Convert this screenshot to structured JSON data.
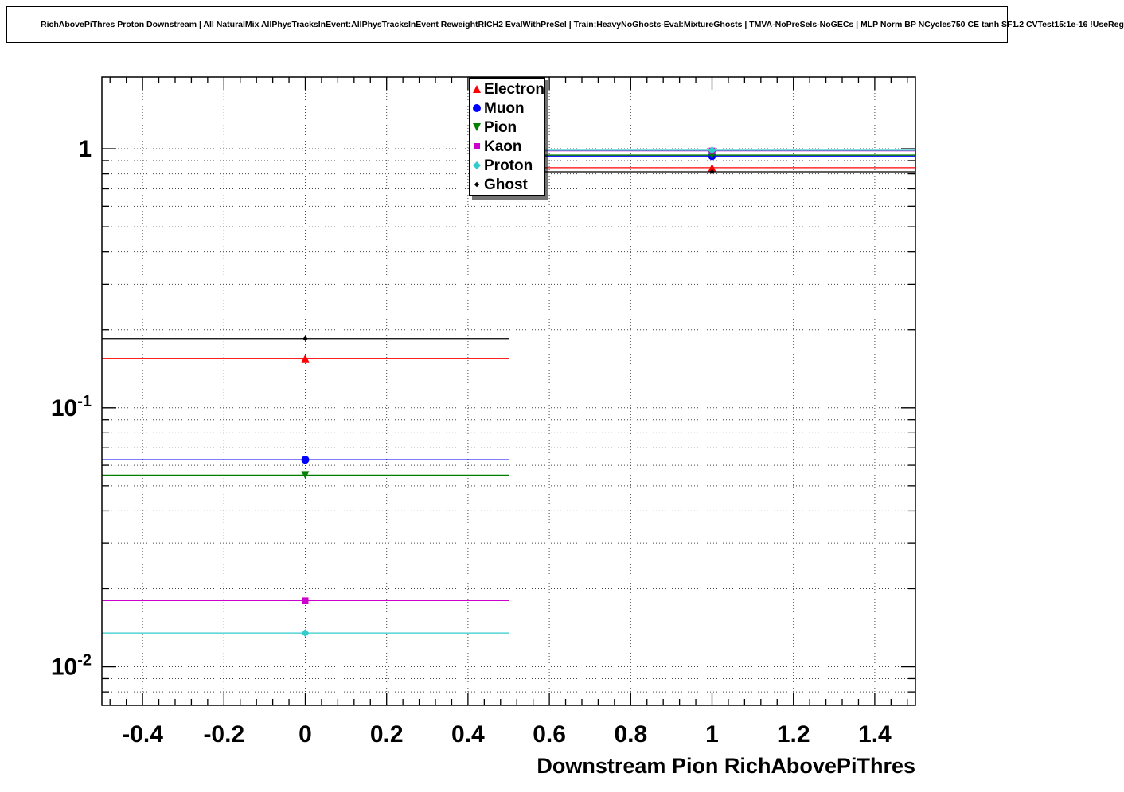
{
  "window": {
    "title": "RichAbovePiThres Proton Downstream | All NaturalMix AllPhysTracksInEvent:AllPhysTracksInEvent ReweightRICH2 EvalWithPreSel | Train:HeavyNoGhosts-Eval:MixtureGhosts | TMVA-NoPreSels-NoGECs | MLP Norm BP NCycles750 CE tanh SF1.2 CVTest15:1e-16 !UseReg"
  },
  "chart_data": {
    "type": "line",
    "title": "",
    "xlabel": "Downstream Pion RichAbovePiThres",
    "ylabel": "",
    "yscale": "log",
    "xlim": [
      -0.5,
      1.5
    ],
    "ylim": [
      0.0071,
      1.89
    ],
    "grid": true,
    "legend_position": "top-center",
    "x_ticks": [
      -0.4,
      -0.2,
      0,
      0.2,
      0.4,
      0.6,
      0.8,
      1,
      1.2,
      1.4
    ],
    "x_tick_labels": [
      "-0.4",
      "-0.2",
      "0",
      "0.2",
      "0.4",
      "0.6",
      "0.8",
      "1",
      "1.2",
      "1.4"
    ],
    "y_ticks": [
      {
        "v": 1,
        "base": "1",
        "exp": ""
      },
      {
        "v": 0.1,
        "base": "10",
        "exp": "-1"
      },
      {
        "v": 0.01,
        "base": "10",
        "exp": "-2"
      }
    ],
    "bins": {
      "centers": [
        0,
        1
      ],
      "halfwidth": 0.5
    },
    "series": [
      {
        "name": "Electron",
        "color": "#ff0000",
        "marker": "triangle-up",
        "values": [
          0.155,
          0.845
        ]
      },
      {
        "name": "Muon",
        "color": "#0000ff",
        "marker": "circle",
        "values": [
          0.063,
          0.937
        ]
      },
      {
        "name": "Pion",
        "color": "#008000",
        "marker": "triangle-down",
        "values": [
          0.055,
          0.945
        ]
      },
      {
        "name": "Kaon",
        "color": "#cc00cc",
        "marker": "square",
        "values": [
          0.018,
          0.982
        ]
      },
      {
        "name": "Proton",
        "color": "#33cccc",
        "marker": "diamond",
        "values": [
          0.0135,
          0.9865
        ]
      },
      {
        "name": "Ghost",
        "color": "#000000",
        "marker": "dot",
        "values": [
          0.185,
          0.815
        ]
      }
    ]
  }
}
